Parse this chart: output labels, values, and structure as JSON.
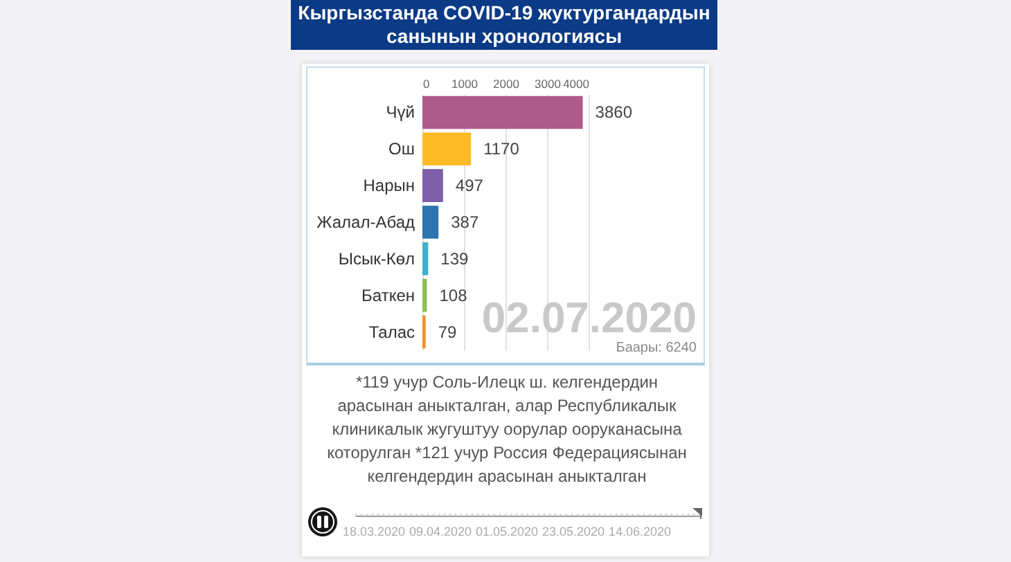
{
  "chart_data": {
    "type": "bar",
    "orientation": "horizontal",
    "title": "Кыргызстанда COVID-19 жуктургандардын санынын хронологиясы",
    "categories": [
      "Чүй",
      "Ош",
      "Нарын",
      "Жалал-Абад",
      "Ысык-Көл",
      "Баткен",
      "Талас"
    ],
    "values": [
      3860,
      1170,
      497,
      387,
      139,
      108,
      79
    ],
    "colors": [
      "#ae5a8b",
      "#fbba26",
      "#7d60a8",
      "#2e75b0",
      "#3fb1cc",
      "#8cc152",
      "#f0922b"
    ],
    "xlim": [
      0,
      4000
    ],
    "xticks": [
      0,
      1000,
      2000,
      3000,
      4000
    ],
    "grid": "x",
    "data_labels": true,
    "annotations": [
      "02.07.2020",
      "Баары: 6240",
      "*119 учур Соль-Илецк ш. келгендердин арасынан аныкталган, алар Республикалык клиникалык жугуштуу оорулар ооруканасына которулган *121 учур Россия Федерациясынан келгендердин арасынан аныкталган",
      "18.03.2020",
      "09.04.2020",
      "01.05.2020",
      "23.05.2020",
      "14.06.2020"
    ]
  }
}
